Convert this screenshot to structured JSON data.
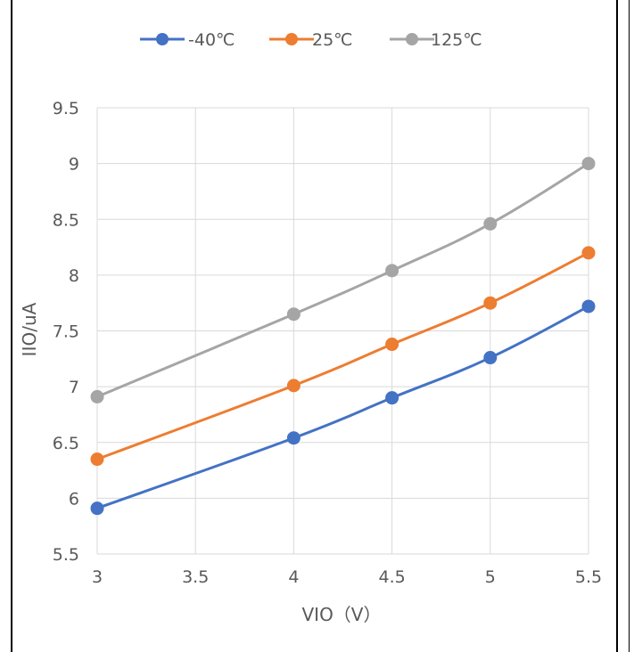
{
  "chart_data": {
    "type": "line",
    "x": [
      3,
      4,
      4.5,
      5,
      5.5
    ],
    "series": [
      {
        "name": "-40℃",
        "color": "#4472c4",
        "values": [
          5.91,
          6.54,
          6.9,
          7.26,
          7.72
        ]
      },
      {
        "name": "25℃",
        "color": "#ed7d31",
        "values": [
          6.35,
          7.01,
          7.38,
          7.75,
          8.2
        ]
      },
      {
        "name": "125℃",
        "color": "#a5a5a5",
        "values": [
          6.91,
          7.65,
          8.04,
          8.46,
          9.0
        ]
      }
    ],
    "xlabel": "VIO（V）",
    "ylabel": "IIO/uA",
    "xlim": [
      3,
      5.5
    ],
    "ylim": [
      5.5,
      9.5
    ],
    "x_ticks": [
      "3",
      "3.5",
      "4",
      "4.5",
      "5",
      "5.5"
    ],
    "y_ticks": [
      "5.5",
      "6",
      "6.5",
      "7",
      "7.5",
      "8",
      "8.5",
      "9",
      "9.5"
    ],
    "grid": true,
    "legend_position": "top"
  }
}
